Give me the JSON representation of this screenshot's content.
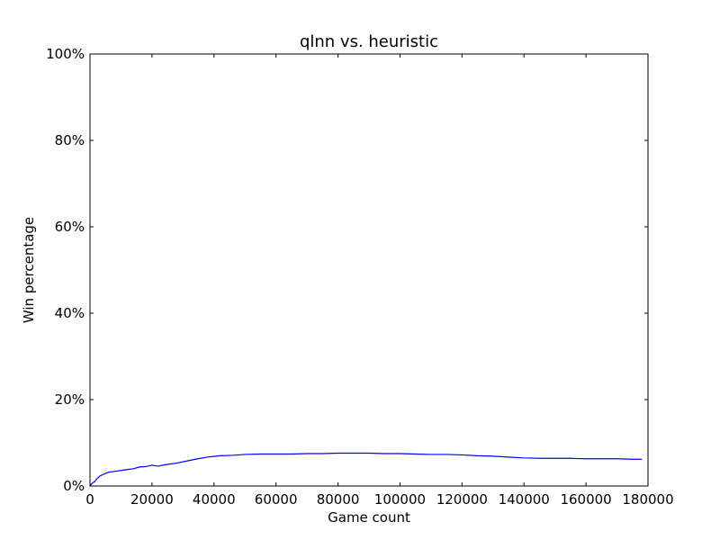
{
  "chart_data": {
    "type": "line",
    "title": "qlnn vs. heuristic",
    "xlabel": "Game count",
    "ylabel": "Win percentage",
    "xlim": [
      0,
      180000
    ],
    "ylim": [
      0,
      100
    ],
    "x_ticks": [
      0,
      20000,
      40000,
      60000,
      80000,
      100000,
      120000,
      140000,
      160000,
      180000
    ],
    "x_tick_labels": [
      "0",
      "20000",
      "40000",
      "60000",
      "80000",
      "100000",
      "120000",
      "140000",
      "160000",
      "180000"
    ],
    "y_ticks": [
      0,
      20,
      40,
      60,
      80,
      100
    ],
    "y_tick_labels": [
      "0%",
      "20%",
      "40%",
      "60%",
      "80%",
      "100%"
    ],
    "grid": false,
    "line_color": "#0000ff",
    "series": [
      {
        "x": [
          0,
          500,
          1000,
          1500,
          2000,
          3000,
          4000,
          5000,
          6000,
          7000,
          8000,
          10000,
          12000,
          14000,
          16000,
          18000,
          20000,
          22000,
          24000,
          26000,
          28000,
          30000,
          34000,
          38000,
          42000,
          46000,
          50000,
          55000,
          60000,
          65000,
          70000,
          75000,
          80000,
          85000,
          90000,
          95000,
          100000,
          105000,
          110000,
          115000,
          120000,
          125000,
          130000,
          135000,
          140000,
          145000,
          150000,
          155000,
          160000,
          165000,
          170000,
          175000,
          178000
        ],
        "y": [
          0.0,
          0.5,
          0.8,
          1.0,
          1.5,
          2.2,
          2.6,
          2.9,
          3.2,
          3.3,
          3.4,
          3.6,
          3.8,
          4.0,
          4.4,
          4.5,
          4.8,
          4.6,
          4.9,
          5.1,
          5.3,
          5.6,
          6.2,
          6.7,
          7.0,
          7.1,
          7.3,
          7.4,
          7.4,
          7.4,
          7.5,
          7.5,
          7.6,
          7.6,
          7.6,
          7.5,
          7.5,
          7.4,
          7.3,
          7.3,
          7.2,
          7.0,
          6.9,
          6.7,
          6.5,
          6.4,
          6.4,
          6.4,
          6.3,
          6.3,
          6.3,
          6.2,
          6.2
        ]
      }
    ]
  }
}
